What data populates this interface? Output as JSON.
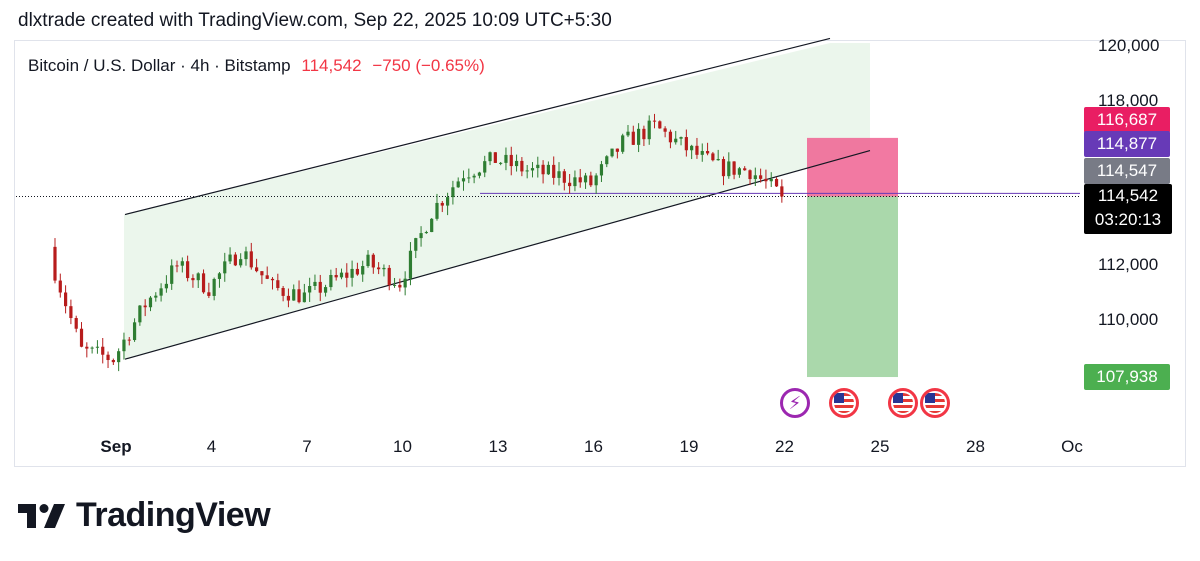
{
  "header": {
    "text": "dlxtrade created with TradingView.com, Sep 22, 2025 10:09 UTC+5:30"
  },
  "legend": {
    "symbol": "Bitcoin / U.S. Dollar · 4h · Bitstamp",
    "price": "114,542",
    "change": "−750 (−0.65%)"
  },
  "price_tags": {
    "stop": "116,687",
    "purple": "114,877",
    "gray": "114,547",
    "last": "114,542",
    "countdown": "03:20:13",
    "target": "107,938"
  },
  "colors": {
    "up": "#089981",
    "down": "#f23645",
    "candle_up": "#2e7d32",
    "candle_down": "#b71c1c",
    "channel_fill": "#e8f5e9",
    "stop_zone": "#f06292",
    "target_zone": "#a5d6a7",
    "tag_stop": "#e91e63",
    "tag_purple": "#673ab7",
    "tag_gray": "#787b86",
    "tag_target": "#4caf50"
  },
  "brand": {
    "name": "TradingView"
  },
  "chart_data": {
    "type": "candlestick",
    "symbol": "Bitcoin / U.S. Dollar",
    "interval": "4h",
    "exchange": "Bitstamp",
    "y_range": [
      106800,
      121000
    ],
    "y_ticks": [
      {
        "value": 120000,
        "label": "120,000"
      },
      {
        "value": 118000,
        "label": "118,000"
      },
      {
        "value": 112000,
        "label": "112,000"
      },
      {
        "value": 110000,
        "label": "110,000"
      }
    ],
    "x_range": [
      "2025-08-30",
      "2025-10-01"
    ],
    "x_ticks": [
      {
        "date": "2025-09-01",
        "label": "Sep",
        "bold": true
      },
      {
        "date": "2025-09-04",
        "label": "4"
      },
      {
        "date": "2025-09-07",
        "label": "7"
      },
      {
        "date": "2025-09-10",
        "label": "10"
      },
      {
        "date": "2025-09-13",
        "label": "13"
      },
      {
        "date": "2025-09-16",
        "label": "16"
      },
      {
        "date": "2025-09-19",
        "label": "19"
      },
      {
        "date": "2025-09-22",
        "label": "22"
      },
      {
        "date": "2025-09-25",
        "label": "25"
      },
      {
        "date": "2025-09-28",
        "label": "28"
      },
      {
        "date": "2025-10-01",
        "label": "Oc"
      }
    ],
    "key_closes": [
      {
        "date": "2025-08-30",
        "close": 112400
      },
      {
        "date": "2025-08-31",
        "close": 108900
      },
      {
        "date": "2025-09-01",
        "close": 108600
      },
      {
        "date": "2025-09-02",
        "close": 110600
      },
      {
        "date": "2025-09-03",
        "close": 112000
      },
      {
        "date": "2025-09-04",
        "close": 111200
      },
      {
        "date": "2025-09-05",
        "close": 112600
      },
      {
        "date": "2025-09-06",
        "close": 111200
      },
      {
        "date": "2025-09-07",
        "close": 110900
      },
      {
        "date": "2025-09-08",
        "close": 111500
      },
      {
        "date": "2025-09-09",
        "close": 112100
      },
      {
        "date": "2025-09-10",
        "close": 111400
      },
      {
        "date": "2025-09-11",
        "close": 114000
      },
      {
        "date": "2025-09-12",
        "close": 115400
      },
      {
        "date": "2025-09-13",
        "close": 115900
      },
      {
        "date": "2025-09-14",
        "close": 115500
      },
      {
        "date": "2025-09-15",
        "close": 115300
      },
      {
        "date": "2025-09-16",
        "close": 115000
      },
      {
        "date": "2025-09-17",
        "close": 116500
      },
      {
        "date": "2025-09-18",
        "close": 117100
      },
      {
        "date": "2025-09-19",
        "close": 116300
      },
      {
        "date": "2025-09-20",
        "close": 115600
      },
      {
        "date": "2025-09-21",
        "close": 115500
      },
      {
        "date": "2025-09-22",
        "close": 114542
      }
    ],
    "channel": {
      "upper": [
        {
          "date": "2025-09-01",
          "value": 113800
        },
        {
          "date": "2025-09-23",
          "value": 120200
        }
      ],
      "lower": [
        {
          "date": "2025-09-01",
          "value": 108500
        },
        {
          "date": "2025-09-24",
          "value": 116000
        }
      ]
    },
    "position": {
      "type": "short",
      "entry": 114542,
      "stop": 116687,
      "target": 107938,
      "start": "2025-09-23",
      "end": "2025-09-25"
    },
    "horizontal_line": 114877,
    "events": [
      {
        "date": "2025-09-23",
        "kind": "lightning"
      },
      {
        "date": "2025-09-24",
        "kind": "us-flag"
      },
      {
        "date": "2025-09-25",
        "kind": "us-flag"
      },
      {
        "date": "2025-09-26",
        "kind": "us-flag"
      }
    ]
  }
}
